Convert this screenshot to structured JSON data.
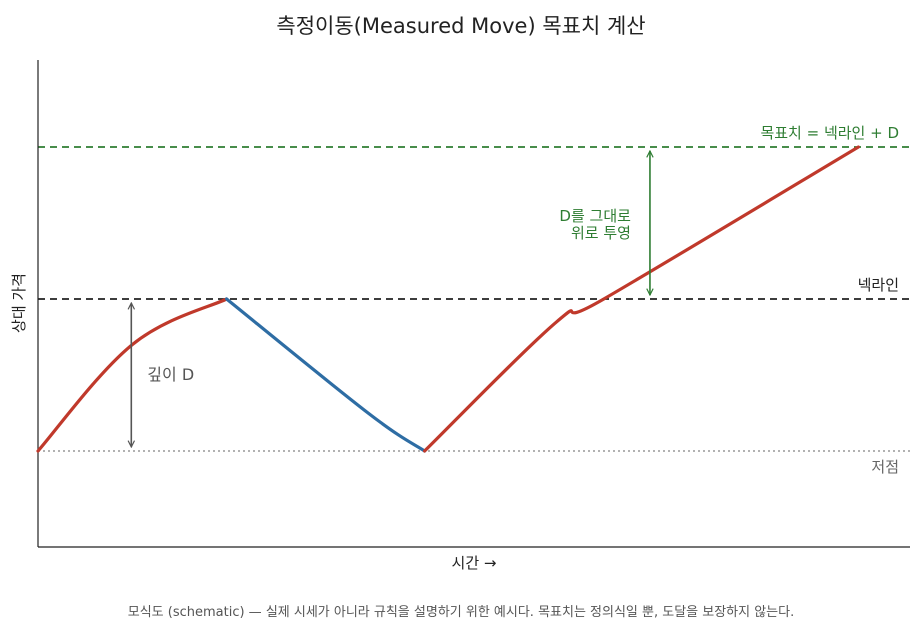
{
  "chart_data": {
    "type": "line",
    "title": "측정이동(Measured Move) 목표치 계산",
    "xlabel": "시간 →",
    "ylabel": "상대 가격",
    "grid": false,
    "legend": "none",
    "caption": "모식도 (schematic) — 실제 시세가 아니라 규칙을 설명하기 위한 예시다. 목표치는 정의식일 뿐, 도달을 보장하지 않는다.",
    "levels": [
      {
        "key": "target",
        "label": "목표치 = 넥라인 + D",
        "y": 2.0,
        "style": "dashed",
        "color": "#2e7d32"
      },
      {
        "key": "neckline",
        "label": "넥라인",
        "y": 1.0,
        "style": "dashed",
        "color": "#222222"
      },
      {
        "key": "low",
        "label": "저점",
        "y": 0.0,
        "style": "dotted",
        "color": "#999999"
      }
    ],
    "annotations": [
      {
        "key": "depth",
        "label": "깊이 D",
        "x": 0.1,
        "y_from": 0.0,
        "y_to": 1.0,
        "color": "#555555"
      },
      {
        "key": "projection",
        "lines": [
          "D를 그대로",
          "위로 투영"
        ],
        "x": 0.65,
        "y_from": 1.0,
        "y_to": 2.0,
        "color": "#2e7d32"
      }
    ],
    "series": [
      {
        "key": "rise1",
        "color": "#c0392b",
        "points": [
          [
            0.0,
            0.0
          ],
          [
            0.1,
            0.7
          ],
          [
            0.2,
            1.0
          ]
        ]
      },
      {
        "key": "decline",
        "color": "#2e6da4",
        "points": [
          [
            0.2,
            1.0
          ],
          [
            0.35,
            0.25
          ],
          [
            0.41,
            0.0
          ]
        ]
      },
      {
        "key": "rise2",
        "color": "#c0392b",
        "points": [
          [
            0.41,
            0.0
          ],
          [
            0.55,
            0.85
          ],
          [
            0.6,
            1.0
          ],
          [
            0.87,
            2.0
          ]
        ]
      }
    ]
  }
}
